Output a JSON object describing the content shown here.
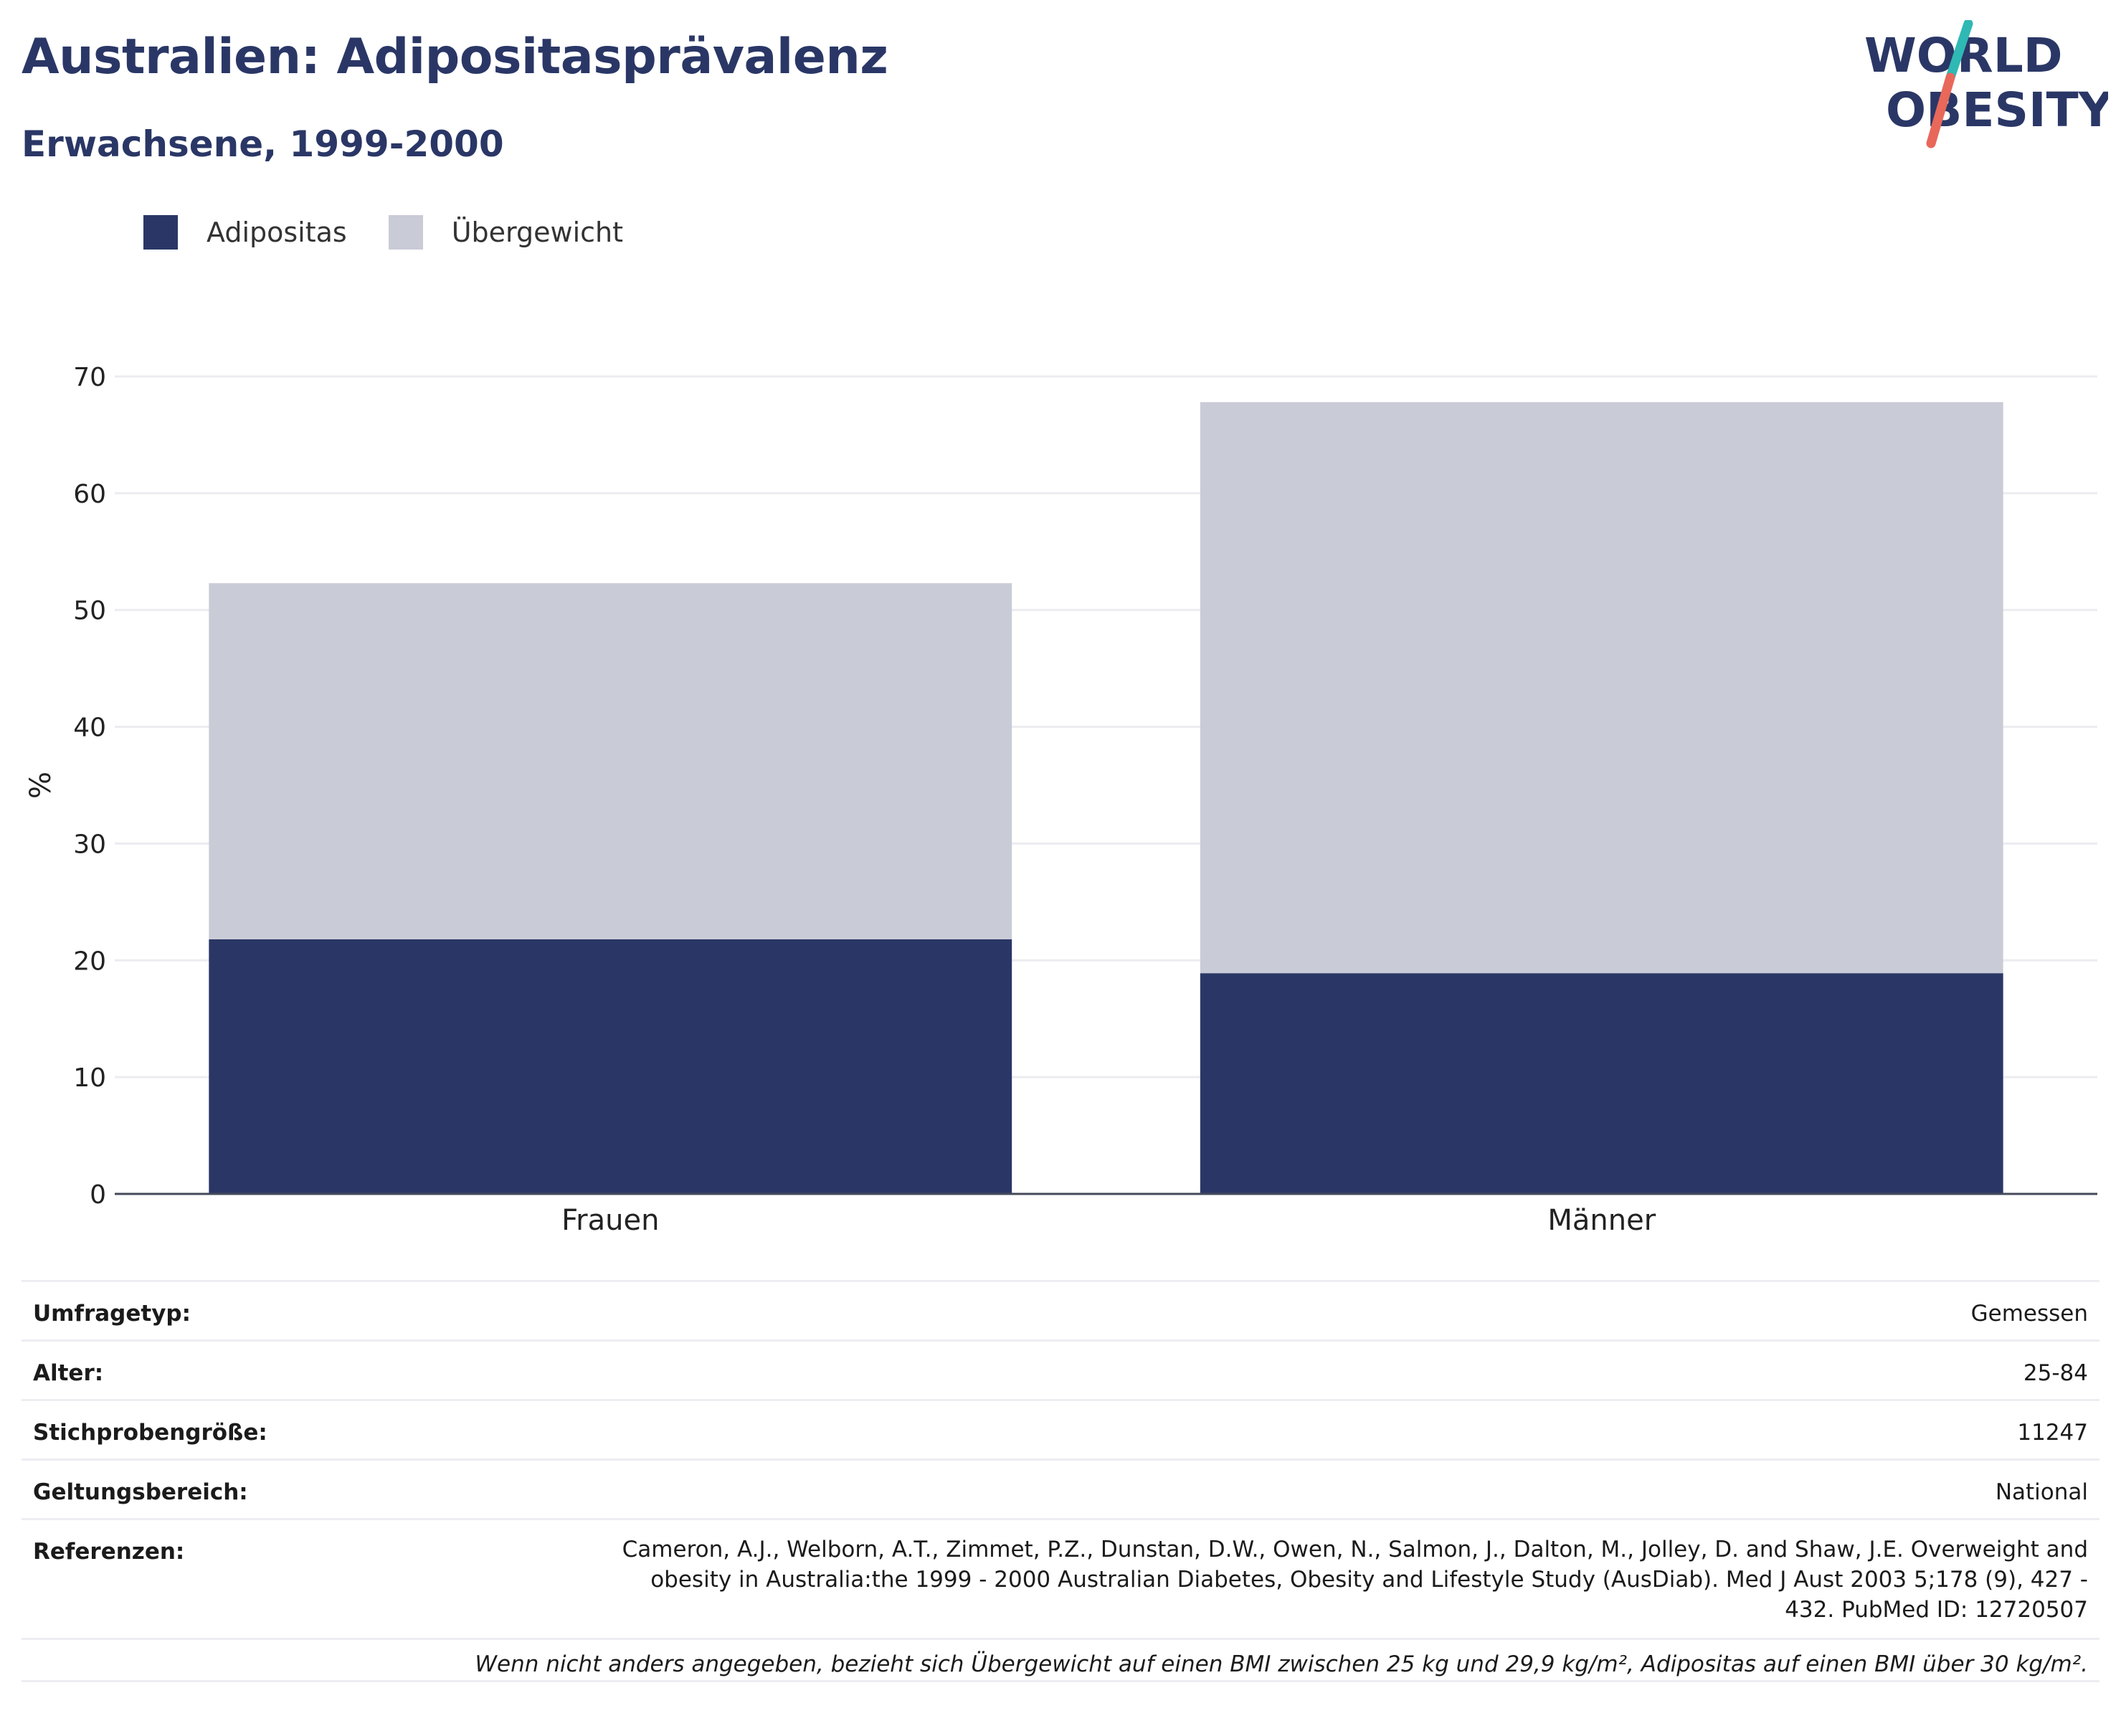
{
  "header": {
    "title": "Australien: Adipositasprävalenz",
    "subtitle": "Erwachsene, 1999-2000"
  },
  "logo": {
    "line1": "WORLD",
    "line2": "OBESITY",
    "text_color": "#2a3766",
    "accent_teal": "#2fb8b4",
    "accent_coral": "#e8685a"
  },
  "chart_data": {
    "type": "bar",
    "stacked": true,
    "title": "",
    "xlabel": "",
    "ylabel": "%",
    "ylim": [
      0,
      70
    ],
    "yticks": [
      0,
      10,
      20,
      30,
      40,
      50,
      60,
      70
    ],
    "grid": true,
    "legend_position": "top-left",
    "categories": [
      "Frauen",
      "Männer"
    ],
    "series": [
      {
        "name": "Adipositas",
        "color": "#2a3766",
        "values": [
          21.8,
          18.9
        ]
      },
      {
        "name": "Übergewicht",
        "color": "#c9cbd7",
        "values": [
          30.5,
          48.9
        ]
      }
    ]
  },
  "info": {
    "survey_type": {
      "label": "Umfragetyp:",
      "value": "Gemessen"
    },
    "age": {
      "label": "Alter:",
      "value": "25-84"
    },
    "sample_size": {
      "label": "Stichprobengröße:",
      "value": "11247"
    },
    "scope": {
      "label": "Geltungsbereich:",
      "value": "National"
    },
    "references": {
      "label": "Referenzen:",
      "value": "Cameron, A.J., Welborn, A.T., Zimmet, P.Z., Dunstan, D.W., Owen, N., Salmon, J., Dalton, M., Jolley, D. and Shaw, J.E. Overweight and obesity in Australia:the 1999 - 2000 Australian Diabetes, Obesity and Lifestyle Study (AusDiab). Med J Aust 2003 5;178 (9), 427 - 432. PubMed ID: 12720507"
    },
    "footnote": "Wenn nicht anders angegeben, bezieht sich Übergewicht auf einen BMI zwischen 25 kg und 29,9 kg/m², Adipositas auf einen BMI über 30 kg/m²."
  }
}
